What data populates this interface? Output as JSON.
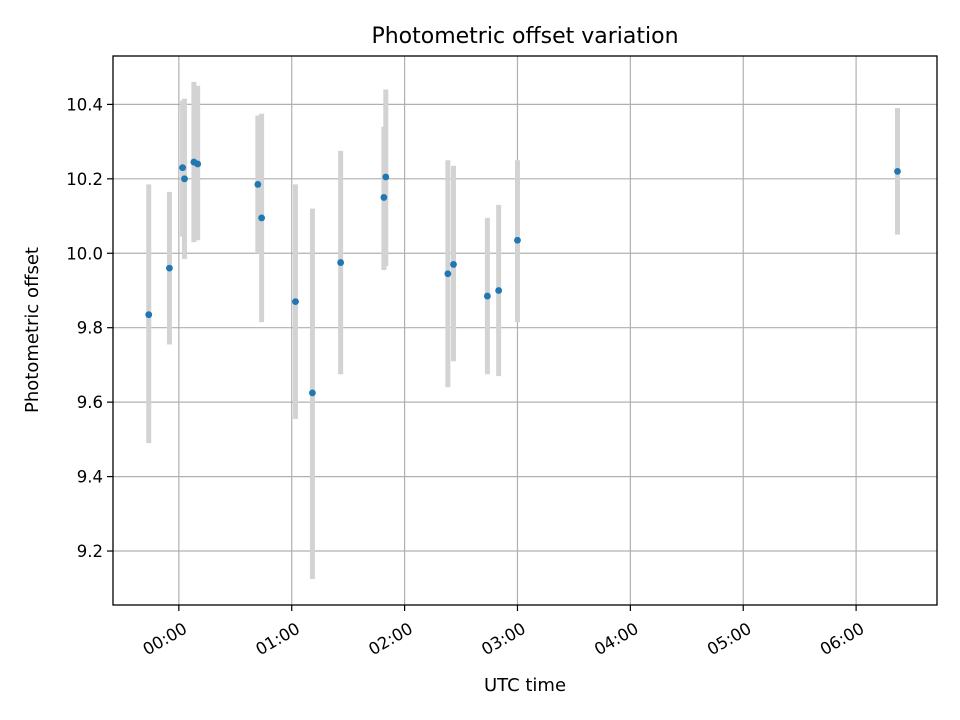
{
  "chart_data": {
    "type": "scatter",
    "title": "Photometric offset variation",
    "xlabel": "UTC time",
    "ylabel": "Photometric offset",
    "xlim": [
      "-00:35",
      "06:43"
    ],
    "ylim": [
      9.055,
      10.53
    ],
    "x_ticks": [
      "00:00",
      "01:00",
      "02:00",
      "03:00",
      "04:00",
      "05:00",
      "06:00"
    ],
    "y_ticks": [
      9.2,
      9.4,
      9.6,
      9.8,
      10.0,
      10.2,
      10.4
    ],
    "grid": true,
    "colors": {
      "point": "#1f77b4",
      "errorbar": "#d3d3d3"
    },
    "points": [
      {
        "x": "-00:16",
        "y": 9.835,
        "ylow": 9.49,
        "yhigh": 10.185
      },
      {
        "x": "-00:05",
        "y": 9.96,
        "ylow": 9.755,
        "yhigh": 10.165
      },
      {
        "x": "00:02",
        "y": 10.23,
        "ylow": 10.045,
        "yhigh": 10.41
      },
      {
        "x": "00:03",
        "y": 10.2,
        "ylow": 9.985,
        "yhigh": 10.415
      },
      {
        "x": "00:08",
        "y": 10.245,
        "ylow": 10.03,
        "yhigh": 10.46
      },
      {
        "x": "00:10",
        "y": 10.24,
        "ylow": 10.035,
        "yhigh": 10.45
      },
      {
        "x": "00:42",
        "y": 10.185,
        "ylow": 10.0,
        "yhigh": 10.37
      },
      {
        "x": "00:44",
        "y": 10.095,
        "ylow": 9.815,
        "yhigh": 10.375
      },
      {
        "x": "01:02",
        "y": 9.87,
        "ylow": 9.555,
        "yhigh": 10.185
      },
      {
        "x": "01:11",
        "y": 9.625,
        "ylow": 9.125,
        "yhigh": 10.12
      },
      {
        "x": "01:26",
        "y": 9.975,
        "ylow": 9.675,
        "yhigh": 10.275
      },
      {
        "x": "01:49",
        "y": 10.15,
        "ylow": 9.955,
        "yhigh": 10.34
      },
      {
        "x": "01:50",
        "y": 10.205,
        "ylow": 9.965,
        "yhigh": 10.44
      },
      {
        "x": "02:23",
        "y": 9.945,
        "ylow": 9.64,
        "yhigh": 10.25
      },
      {
        "x": "02:26",
        "y": 9.97,
        "ylow": 9.71,
        "yhigh": 10.235
      },
      {
        "x": "02:44",
        "y": 9.885,
        "ylow": 9.675,
        "yhigh": 10.095
      },
      {
        "x": "02:50",
        "y": 9.9,
        "ylow": 9.67,
        "yhigh": 10.13
      },
      {
        "x": "03:00",
        "y": 10.035,
        "ylow": 9.815,
        "yhigh": 10.25
      },
      {
        "x": "06:22",
        "y": 10.22,
        "ylow": 10.05,
        "yhigh": 10.39
      }
    ]
  }
}
